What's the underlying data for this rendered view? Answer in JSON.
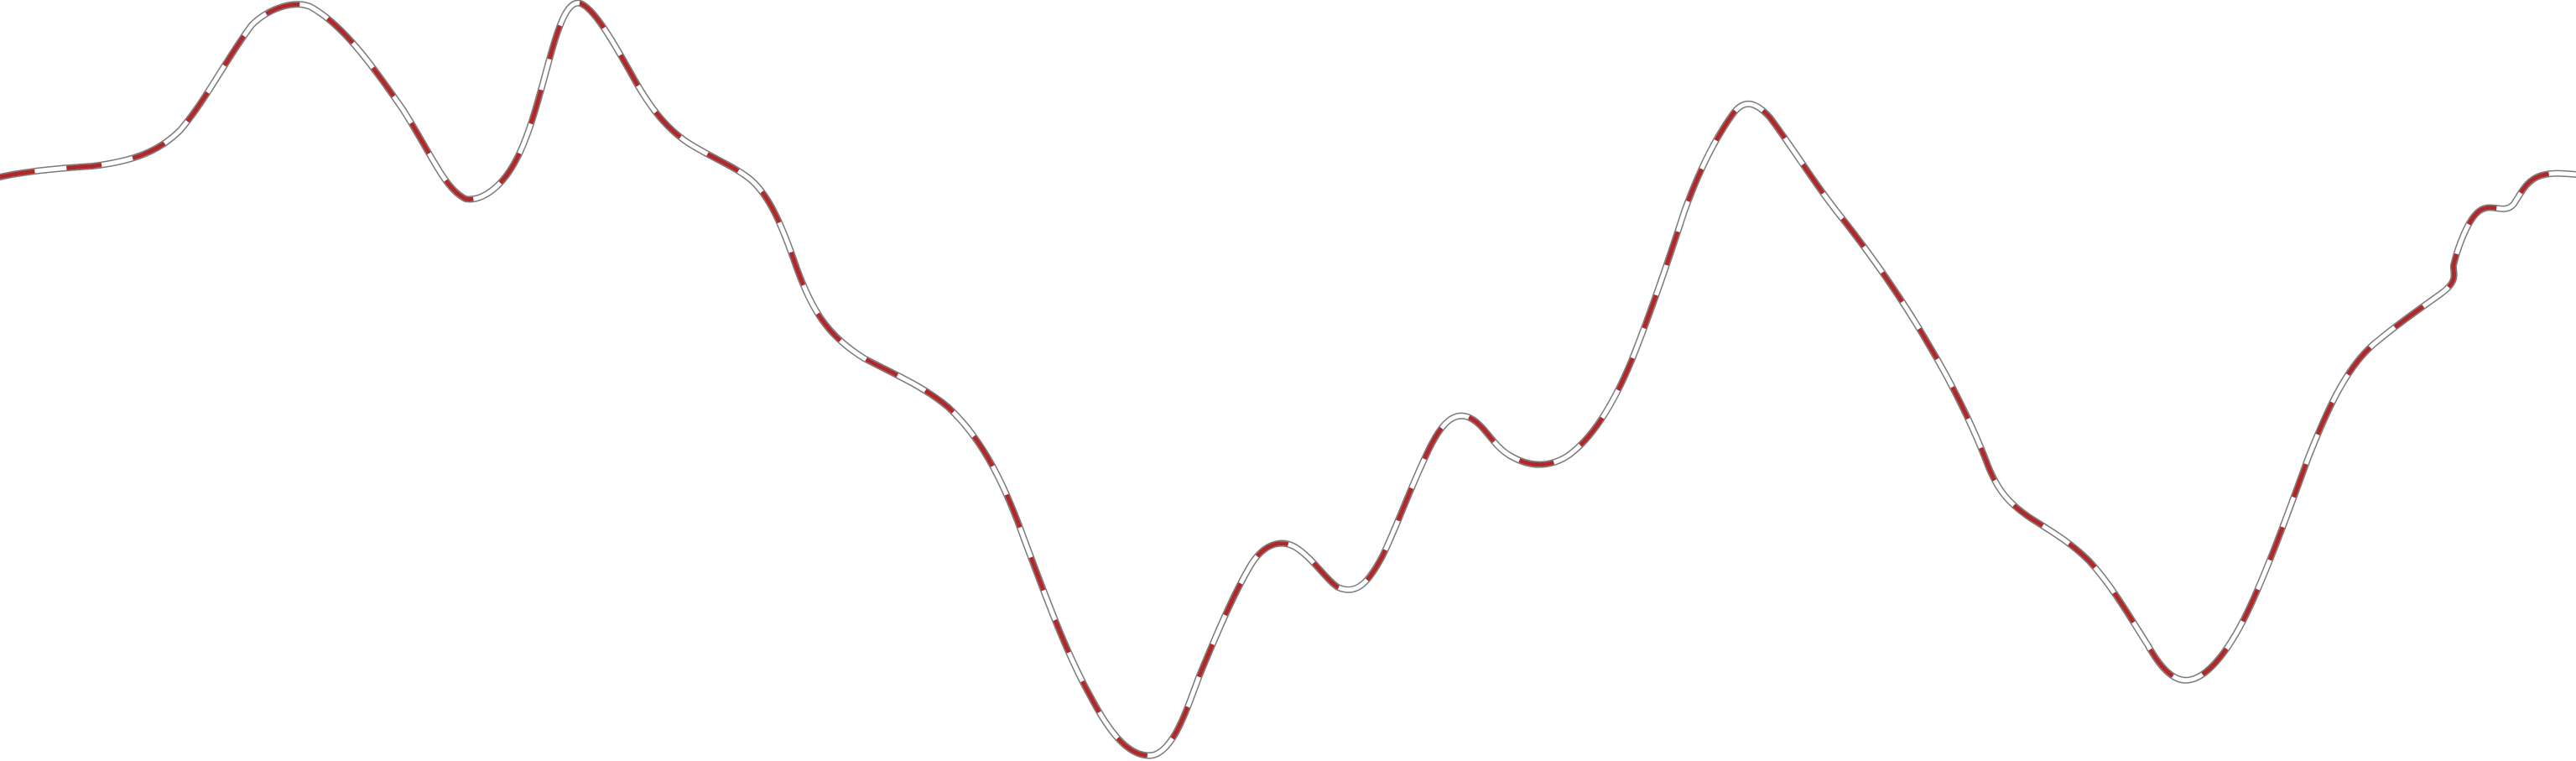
{
  "map": {
    "feature": "route-line",
    "style": {
      "casing_color": "#7a7a7a",
      "fill_color": "#ffffff",
      "dash_color": "#b0282a"
    }
  }
}
